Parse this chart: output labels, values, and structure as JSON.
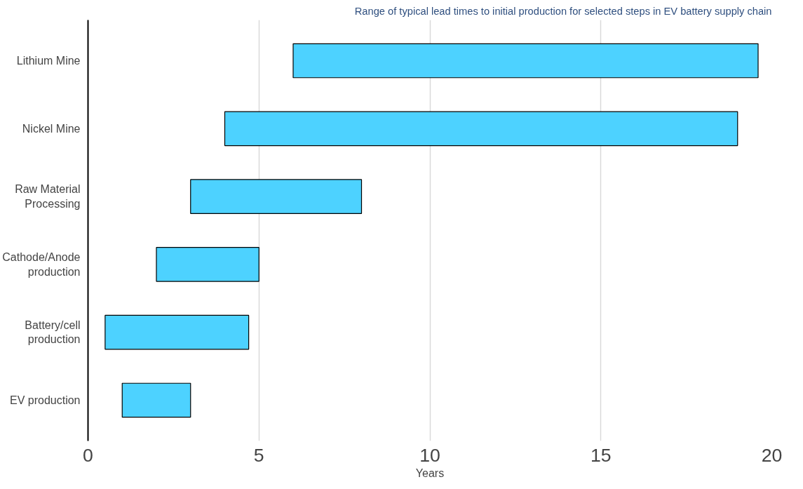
{
  "chart_data": {
    "type": "bar",
    "orientation": "horizontal",
    "title": "Range of typical lead times to initial production for selected steps in EV battery supply chain",
    "categories": [
      "Lithium Mine",
      "Nickel Mine",
      "Raw Material\nProcessing",
      "Cathode/Anode\nproduction",
      "Battery/cell\nproduction",
      "EV production"
    ],
    "base": [
      6.0,
      4.0,
      3.0,
      2.0,
      0.5,
      1.0
    ],
    "values": [
      13.6,
      15.0,
      5.0,
      3.0,
      4.2,
      2.0
    ],
    "color": "#4dd2ff",
    "xlabel": "Years",
    "xlim": [
      0,
      20
    ],
    "xticks": [
      0,
      5,
      10,
      15,
      20
    ],
    "grid": "x"
  }
}
